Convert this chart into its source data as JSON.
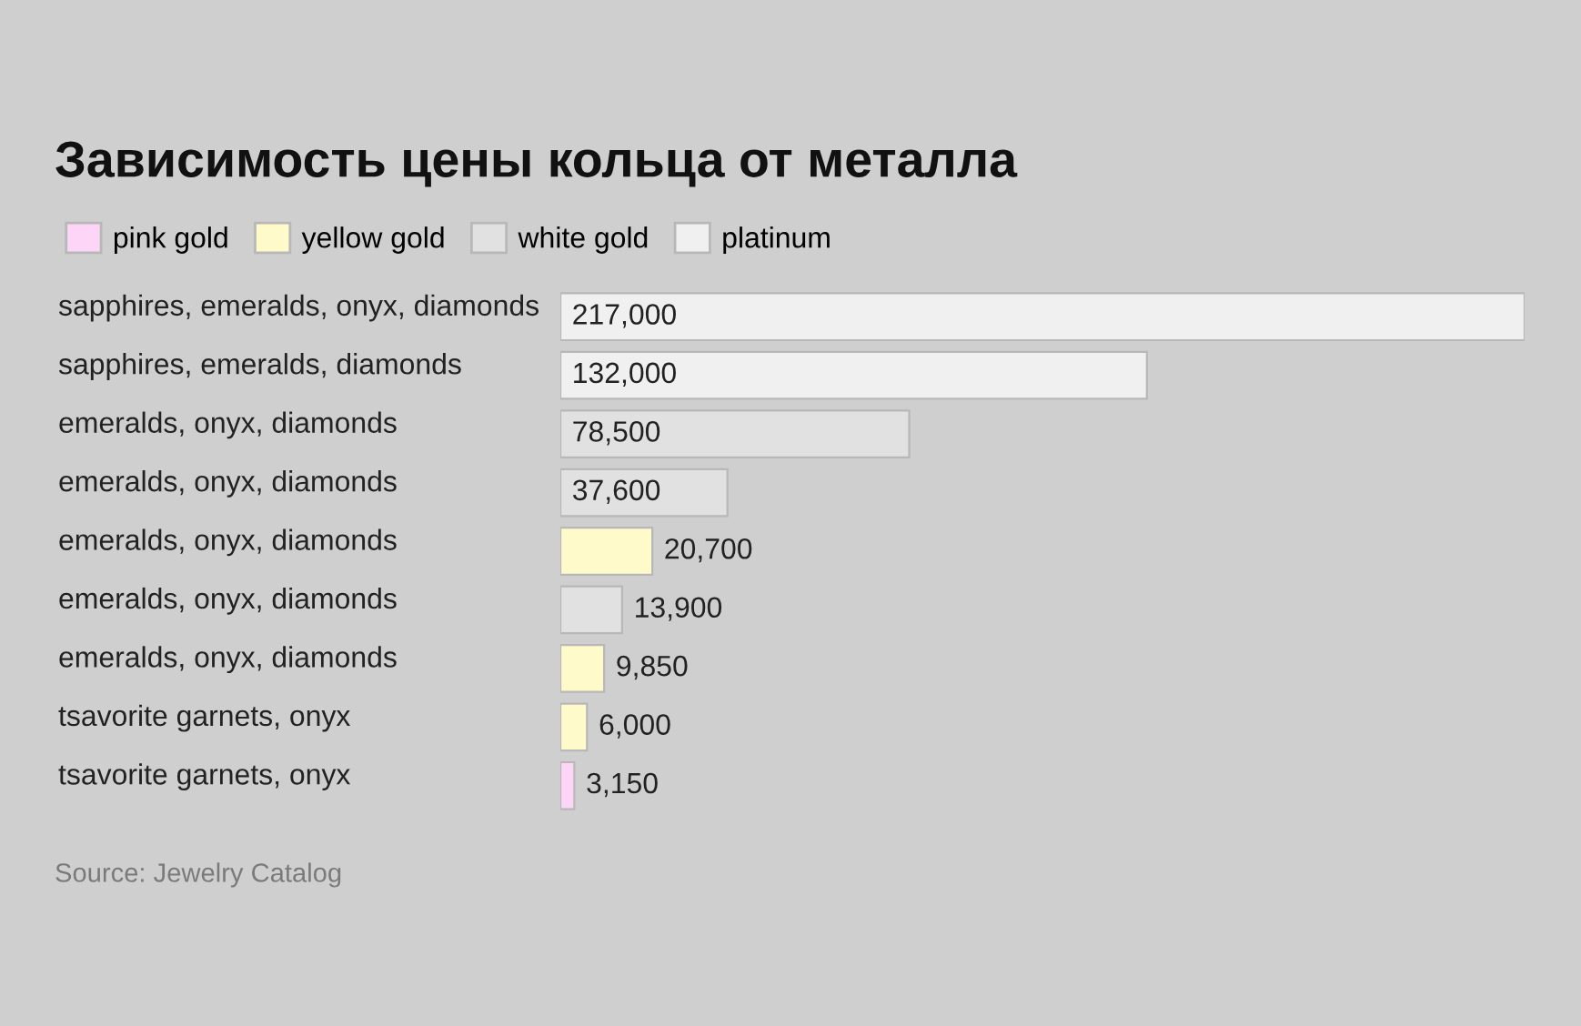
{
  "chart_data": {
    "type": "bar",
    "orientation": "horizontal",
    "title": "Зависимость цены кольца от металла",
    "categories": [
      "sapphires, emeralds, onyx, diamonds",
      "sapphires, emeralds, diamonds",
      "emeralds, onyx, diamonds",
      "emeralds, onyx, diamonds",
      "emeralds, onyx, diamonds",
      "emeralds, onyx, diamonds",
      "emeralds, onyx, diamonds",
      "tsavorite garnets, onyx",
      "tsavorite garnets, onyx"
    ],
    "series": [
      {
        "name": "pink gold",
        "color": "#fdd5f7",
        "values": [
          null,
          null,
          null,
          null,
          null,
          null,
          null,
          null,
          3150
        ],
        "value_labels": [
          null,
          null,
          null,
          null,
          null,
          null,
          null,
          null,
          "3,150"
        ]
      },
      {
        "name": "yellow gold",
        "color": "#fffac9",
        "values": [
          null,
          null,
          null,
          null,
          20700,
          null,
          9850,
          6000,
          null
        ],
        "value_labels": [
          null,
          null,
          null,
          null,
          "20,700",
          null,
          "9,850",
          "6,000",
          null
        ]
      },
      {
        "name": "white gold",
        "color": "#e1e1e1",
        "values": [
          null,
          null,
          78500,
          37600,
          null,
          13900,
          null,
          null,
          null
        ],
        "value_labels": [
          null,
          null,
          "78,500",
          "37,600",
          null,
          "13,900",
          null,
          null,
          null
        ]
      },
      {
        "name": "platinum",
        "color": "#f0f0f0",
        "values": [
          217000,
          132000,
          null,
          null,
          null,
          null,
          null,
          null,
          null
        ],
        "value_labels": [
          "217,000",
          "132,000",
          null,
          null,
          null,
          null,
          null,
          null,
          null
        ]
      }
    ],
    "legend": "top left",
    "annotations": [
      "Source: Jewelry Catalog"
    ]
  }
}
